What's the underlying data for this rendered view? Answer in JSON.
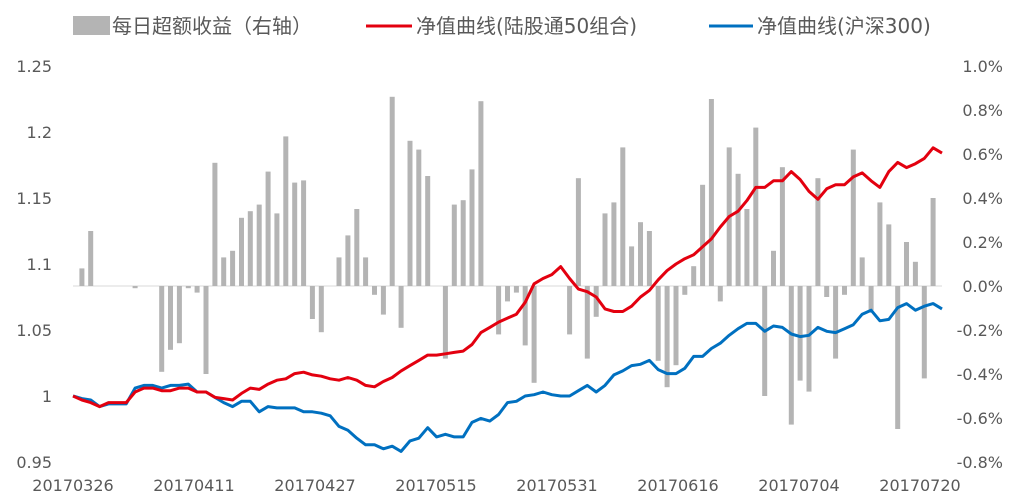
{
  "chart_data": {
    "type": "bar+line",
    "legend_position": "top",
    "grid": false,
    "x_tick_labels": [
      "20170326",
      "20170411",
      "20170427",
      "20170515",
      "20170531",
      "20170616",
      "20170704",
      "20170720"
    ],
    "y_left": {
      "ylim": [
        0.95,
        1.25
      ],
      "ticks": [
        "0.95",
        "1",
        "1.05",
        "1.1",
        "1.15",
        "1.2",
        "1.25"
      ]
    },
    "y_right": {
      "ylim": [
        -0.008,
        0.01
      ],
      "ticks": [
        "-0.8%",
        "-0.6%",
        "-0.4%",
        "-0.2%",
        "0.0%",
        "0.2%",
        "0.4%",
        "0.6%",
        "0.8%",
        "1.0%"
      ]
    },
    "series": [
      {
        "name": "每日超额收益（右轴）",
        "kind": "bar",
        "axis": "right",
        "color": "#b4b4b4",
        "values": [
          0,
          0.0008,
          0.0025,
          0,
          0,
          0,
          0,
          -0.0001,
          0,
          0,
          -0.0039,
          -0.0029,
          -0.0026,
          -0.0001,
          -0.0003,
          -0.004,
          0.0056,
          0.0013,
          0.0016,
          0.0031,
          0.0034,
          0.0037,
          0.0052,
          0.0033,
          0.0068,
          0.0047,
          0.0048,
          -0.0015,
          -0.0021,
          0,
          0.0013,
          0.0023,
          0.0035,
          0.0013,
          -0.0004,
          -0.0013,
          0.0086,
          -0.0019,
          0.0066,
          0.0062,
          0.005,
          0,
          -0.0033,
          0.0037,
          0.0039,
          0.0053,
          0.0084,
          0,
          -0.0022,
          -0.0007,
          -0.0003,
          -0.0027,
          -0.0044,
          0,
          0,
          0,
          -0.0022,
          0.0049,
          -0.0033,
          -0.0014,
          0.0033,
          0.0038,
          0.0063,
          0.0018,
          0.0029,
          0.0025,
          -0.0034,
          -0.0046,
          -0.0036,
          -0.0004,
          0.0009,
          0.0046,
          0.0085,
          -0.0007,
          0.0063,
          0.0051,
          0.0035,
          0.0072,
          -0.005,
          0.0016,
          0.0054,
          -0.0063,
          -0.0043,
          -0.0048,
          0.0049,
          -0.0005,
          -0.0033,
          -0.0004,
          0.0062,
          0.0013,
          -0.0011,
          0.0038,
          0.0028,
          -0.0065,
          0.002,
          0.0011,
          -0.0042,
          0.004,
          0
        ]
      },
      {
        "name": "净值曲线(陆股通50组合)",
        "kind": "line",
        "axis": "left",
        "color": "#e3000f",
        "values": [
          1.0,
          0.997,
          0.995,
          0.992,
          0.995,
          0.995,
          0.995,
          1.003,
          1.006,
          1.006,
          1.004,
          1.004,
          1.006,
          1.006,
          1.003,
          1.003,
          0.999,
          0.998,
          0.997,
          1.002,
          1.006,
          1.005,
          1.009,
          1.012,
          1.013,
          1.017,
          1.018,
          1.016,
          1.015,
          1.013,
          1.012,
          1.014,
          1.012,
          1.008,
          1.007,
          1.011,
          1.014,
          1.019,
          1.023,
          1.027,
          1.031,
          1.031,
          1.032,
          1.033,
          1.034,
          1.039,
          1.048,
          1.052,
          1.056,
          1.059,
          1.062,
          1.071,
          1.085,
          1.089,
          1.092,
          1.098,
          1.089,
          1.081,
          1.079,
          1.075,
          1.066,
          1.064,
          1.064,
          1.068,
          1.075,
          1.08,
          1.088,
          1.095,
          1.1,
          1.104,
          1.107,
          1.113,
          1.119,
          1.128,
          1.136,
          1.14,
          1.148,
          1.158,
          1.158,
          1.163,
          1.163,
          1.17,
          1.164,
          1.155,
          1.149,
          1.157,
          1.16,
          1.16,
          1.166,
          1.169,
          1.163,
          1.158,
          1.17,
          1.177,
          1.173,
          1.176,
          1.18,
          1.188,
          1.184
        ]
      },
      {
        "name": "净值曲线(沪深300)",
        "kind": "line",
        "axis": "left",
        "color": "#0070c0",
        "values": [
          1.0,
          0.998,
          0.997,
          0.992,
          0.994,
          0.994,
          0.994,
          1.006,
          1.008,
          1.008,
          1.006,
          1.008,
          1.008,
          1.009,
          1.003,
          1.003,
          0.999,
          0.995,
          0.992,
          0.996,
          0.996,
          0.988,
          0.992,
          0.991,
          0.991,
          0.991,
          0.988,
          0.988,
          0.987,
          0.985,
          0.977,
          0.974,
          0.968,
          0.963,
          0.963,
          0.96,
          0.962,
          0.958,
          0.966,
          0.968,
          0.976,
          0.969,
          0.971,
          0.969,
          0.969,
          0.98,
          0.983,
          0.981,
          0.986,
          0.995,
          0.996,
          1.0,
          1.001,
          1.003,
          1.001,
          1.0,
          1.0,
          1.004,
          1.008,
          1.003,
          1.008,
          1.016,
          1.019,
          1.023,
          1.024,
          1.027,
          1.02,
          1.017,
          1.017,
          1.021,
          1.03,
          1.03,
          1.036,
          1.04,
          1.046,
          1.051,
          1.055,
          1.055,
          1.049,
          1.053,
          1.052,
          1.047,
          1.045,
          1.046,
          1.052,
          1.049,
          1.048,
          1.051,
          1.054,
          1.062,
          1.065,
          1.057,
          1.058,
          1.067,
          1.07,
          1.065,
          1.068,
          1.07,
          1.066
        ]
      }
    ]
  }
}
